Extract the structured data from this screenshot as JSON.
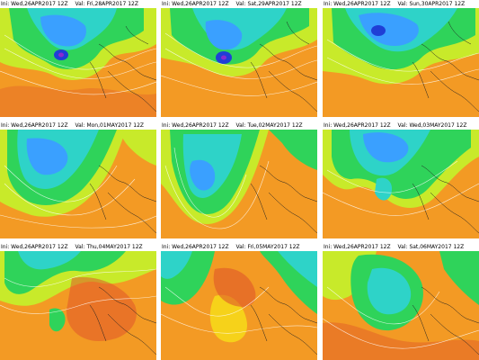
{
  "panels": [
    {
      "init": "Ini: Wed,26APR2017 12Z",
      "valid": "Val: Fri,28APR2017 12Z"
    },
    {
      "init": "Ini: Wed,26APR2017 12Z",
      "valid": "Val: Sat,29APR2017 12Z"
    },
    {
      "init": "Ini: Wed,26APR2017 12Z",
      "valid": "Val: Sun,30APR2017 12Z"
    },
    {
      "init": "Ini: Wed,26APR2017 12Z",
      "valid": "Val: Mon,01MAY2017 12Z"
    },
    {
      "init": "Ini: Wed,26APR2017 12Z",
      "valid": "Val: Tue,02MAY2017 12Z"
    },
    {
      "init": "Ini: Wed,26APR2017 12Z",
      "valid": "Val: Wed,03MAY2017 12Z"
    },
    {
      "init": "Ini: Wed,26APR2017 12Z",
      "valid": "Val: Thu,04MAY2017 12Z"
    },
    {
      "init": "Ini: Wed,26APR2017 12Z",
      "valid": "Val: Fri,05MAY2017 12Z"
    },
    {
      "init": "Ini: Wed,26APR2017 12Z",
      "valid": "Val: Sat,06MAY2017 12Z"
    }
  ],
  "colors": {
    "cold_deep": "#1f3fd6",
    "cold": "#3aa0ff",
    "cool": "#2ed3c8",
    "mild": "#2fd35a",
    "neutral": "#c8ea2a",
    "warm": "#f6d21a",
    "hot": "#f39a24",
    "hotter": "#e0562a"
  }
}
